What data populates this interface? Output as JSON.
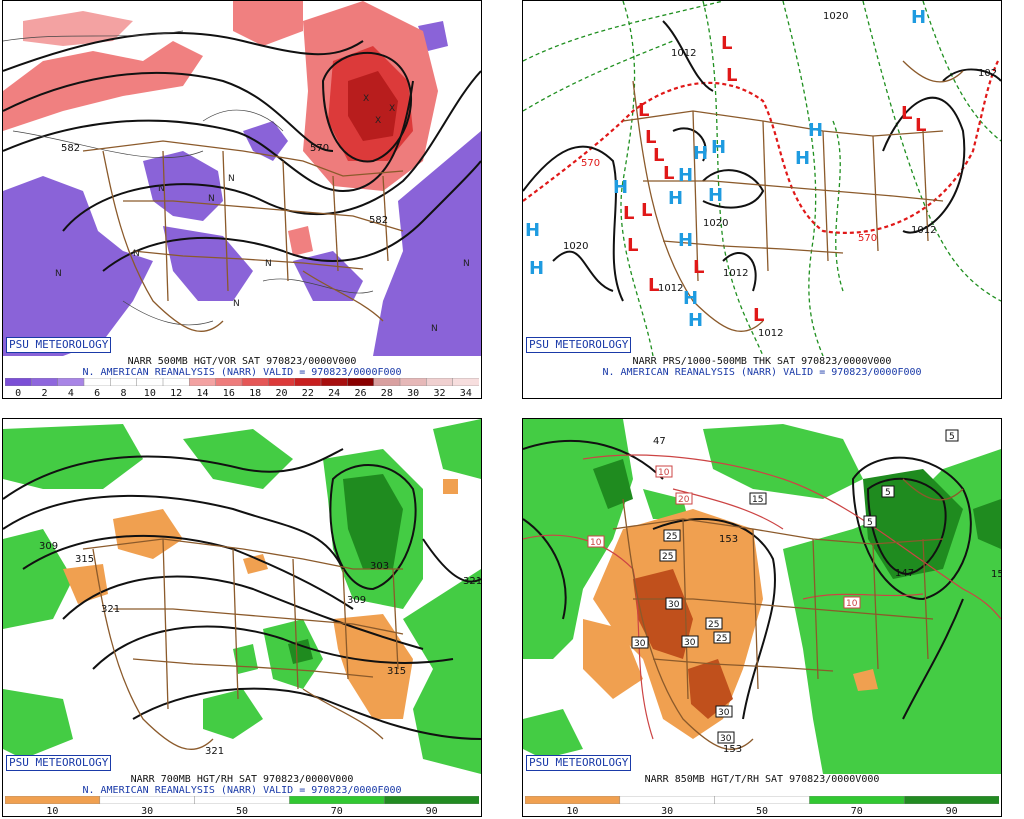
{
  "panels": [
    {
      "name": "500mb-vorticity",
      "caption_line1": "NARR 500MB HGT/VOR SAT 970823/0000V000",
      "caption_line2": "N. AMERICAN REANALYSIS (NARR) VALID = 970823/0000F000",
      "credit": "PSU METEOROLOGY",
      "colorbar_ticks": [
        "0",
        "2",
        "4",
        "6",
        "8",
        "10",
        "12",
        "14",
        "16",
        "18",
        "20",
        "22",
        "24",
        "26",
        "28",
        "30",
        "32",
        "34"
      ],
      "colorbar_colors": [
        "#7b4fd6",
        "#8e66dd",
        "#a885e6",
        "#ffffff",
        "#ffffff",
        "#ffffff",
        "#ffffff",
        "#f3a2a2",
        "#ee7c7c",
        "#e55656",
        "#dc3a3a",
        "#c81f1f",
        "#a80f0f",
        "#8a0000",
        "#d9a0a0",
        "#e6b8b8",
        "#f0d0d0",
        "#f7dede"
      ],
      "contour_labels": [
        "582",
        "570",
        "582"
      ],
      "marker_text": [
        "N",
        "N",
        "N",
        "N",
        "N",
        "N",
        "N",
        "N",
        "N",
        "X",
        "X",
        "X"
      ]
    },
    {
      "name": "surface-pressure-thickness",
      "caption_line1": "NARR PRS/1000-500MB THK SAT 970823/0000V000",
      "caption_line2": "N. AMERICAN REANALYSIS (NARR) VALID = 970823/0000F000",
      "credit": "PSU METEOROLOGY",
      "contour_labels": [
        "1012",
        "1020",
        "1020",
        "1012",
        "1012",
        "1012",
        "1012",
        "570",
        "570",
        "1020",
        "102"
      ],
      "high_label": "H",
      "low_label": "L",
      "colors": {
        "high": "#1e9be0",
        "low": "#e01818",
        "thickness": "#1f8f1f",
        "thickness_540": "#e01818"
      }
    },
    {
      "name": "700mb-rh",
      "caption_line1": "NARR 700MB HGT/RH SAT 970823/0000V000",
      "caption_line2": "N. AMERICAN REANALYSIS (NARR) VALID = 970823/0000F000",
      "credit": "PSU METEOROLOGY",
      "colorbar_ticks": [
        "10",
        "30",
        "50",
        "70",
        "90"
      ],
      "colorbar_colors": [
        "#f0a050",
        "#ffffff",
        "#ffffff",
        "#32c832",
        "#228b22"
      ],
      "contour_labels": [
        "309",
        "315",
        "321",
        "303",
        "309",
        "315",
        "321",
        "321"
      ]
    },
    {
      "name": "850mb-temperature-rh",
      "caption_line1": "NARR 850MB HGT/T/RH SAT 970823/0000V000",
      "caption_line2": "",
      "credit": "PSU METEOROLOGY",
      "colorbar_ticks": [
        "10",
        "30",
        "50",
        "70",
        "90"
      ],
      "colorbar_colors": [
        "#f0a050",
        "#ffffff",
        "#ffffff",
        "#32c832",
        "#228b22"
      ],
      "contour_labels": [
        "47",
        "153",
        "147",
        "153",
        "15"
      ],
      "temp_box_labels": [
        "5",
        "5",
        "5",
        "10",
        "10",
        "10",
        "15",
        "20",
        "25",
        "25",
        "25",
        "25",
        "30",
        "30",
        "30",
        "30",
        "30"
      ]
    }
  ]
}
